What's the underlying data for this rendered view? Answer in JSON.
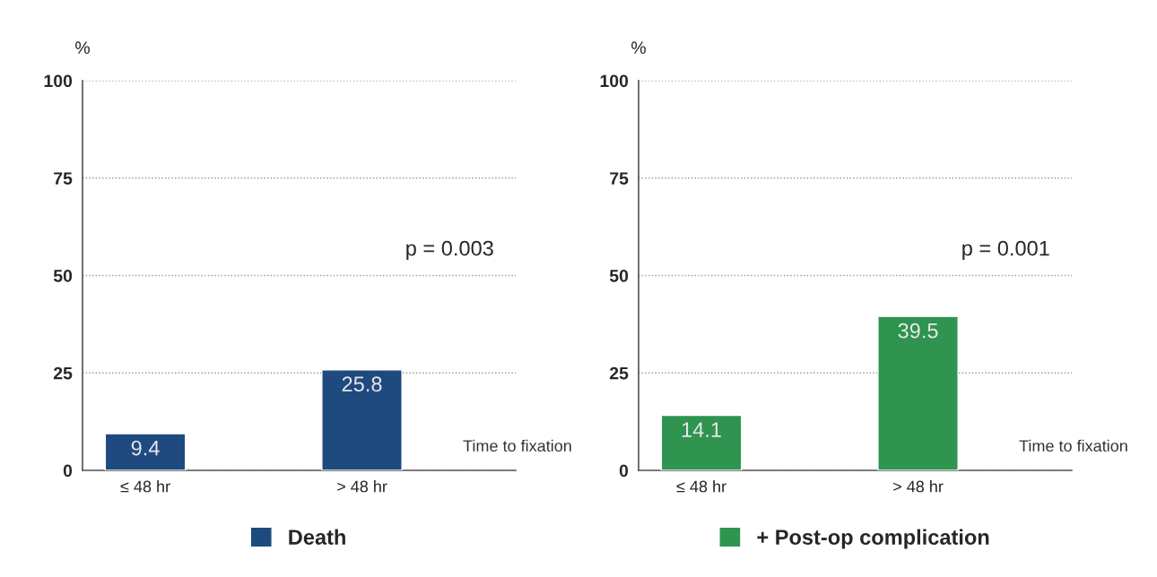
{
  "chart_data": [
    {
      "type": "bar",
      "ylabel": "%",
      "xlabel": "Time to fixation",
      "categories": [
        "≤ 48 hr",
        "> 48 hr"
      ],
      "series": [
        {
          "name": "Death",
          "color": "#1f4a80",
          "values": [
            9.4,
            25.8
          ]
        }
      ],
      "ylim": [
        0,
        100
      ],
      "yticks": [
        0,
        25,
        50,
        75,
        100
      ],
      "grid": "y",
      "legend": "bottom",
      "data_labels": true,
      "annotations": [
        "p = 0.003"
      ]
    },
    {
      "type": "bar",
      "ylabel": "%",
      "xlabel": "Time to fixation",
      "categories": [
        "≤ 48 hr",
        "> 48 hr"
      ],
      "series": [
        {
          "name": "+ Post-op complication",
          "color": "#2e9450",
          "values": [
            14.1,
            39.5
          ]
        }
      ],
      "ylim": [
        0,
        100
      ],
      "yticks": [
        0,
        25,
        50,
        75,
        100
      ],
      "grid": "y",
      "legend": "bottom",
      "data_labels": true,
      "annotations": [
        "p = 0.001"
      ]
    }
  ]
}
